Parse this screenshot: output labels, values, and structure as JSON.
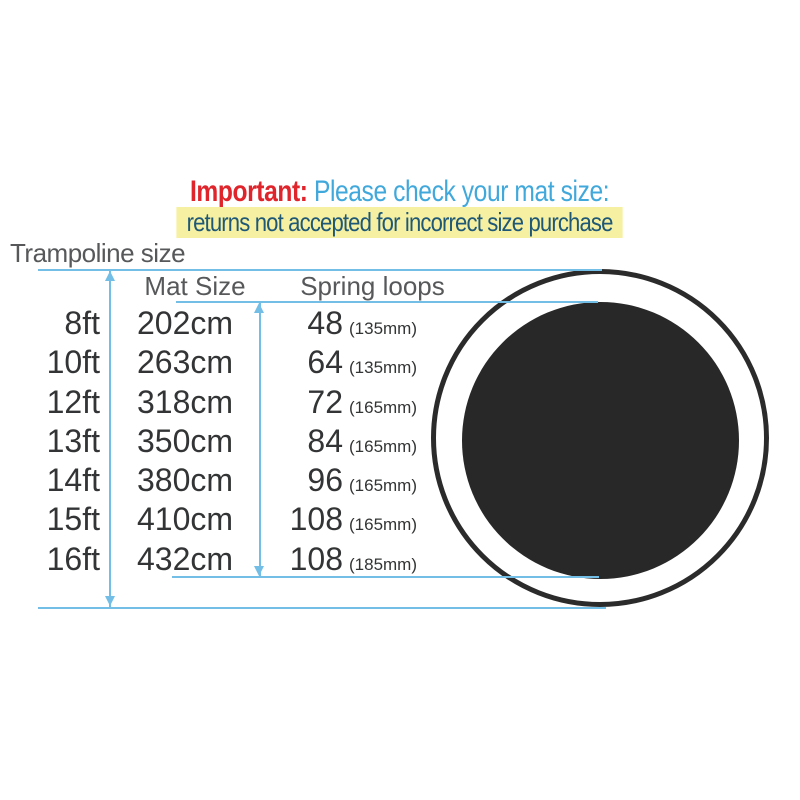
{
  "header": {
    "important_label": "Important:",
    "check_text": "Please check your mat size:",
    "returns_text": "returns not accepted for incorrect size purchase"
  },
  "table": {
    "row_axis_label": "Trampoline size",
    "headers": {
      "mat": "Mat Size",
      "spring": "Spring loops"
    },
    "rows": [
      {
        "size": "8ft",
        "mat": "202cm",
        "springs": "48",
        "spring_length": "(135mm)"
      },
      {
        "size": "10ft",
        "mat": "263cm",
        "springs": "64",
        "spring_length": "(135mm)"
      },
      {
        "size": "12ft",
        "mat": "318cm",
        "springs": "72",
        "spring_length": "(165mm)"
      },
      {
        "size": "13ft",
        "mat": "350cm",
        "springs": "84",
        "spring_length": "(165mm)"
      },
      {
        "size": "14ft",
        "mat": "380cm",
        "springs": "96",
        "spring_length": "(165mm)"
      },
      {
        "size": "15ft",
        "mat": "410cm",
        "springs": "108",
        "spring_length": "(165mm)"
      },
      {
        "size": "16ft",
        "mat": "432cm",
        "springs": "108",
        "spring_length": "(185mm)"
      }
    ]
  },
  "diagram": {
    "outer_measure": "trampoline-size-diameter",
    "inner_measure": "mat-size-diameter"
  },
  "colors": {
    "accent_red": "#e0242b",
    "accent_blue": "#41a8dc",
    "navy": "#1f5876",
    "highlight_yellow": "#f6f1a2",
    "label_gray": "#57585a",
    "text_dark": "#333435",
    "line_blue": "#72bee6",
    "mat_black": "#282829",
    "ring_stroke": "#2b2b2b"
  }
}
